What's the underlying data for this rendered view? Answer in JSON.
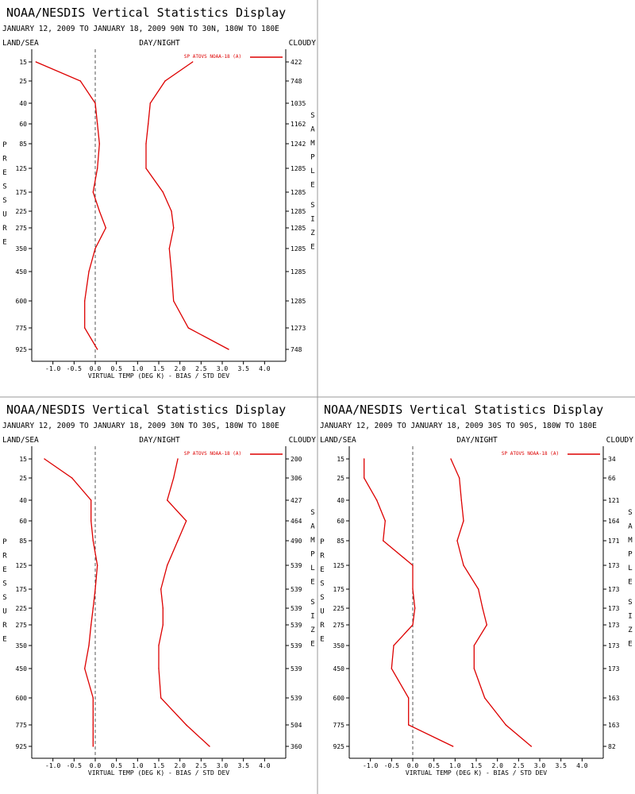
{
  "colors": {
    "line": "#dd0000",
    "axis": "#000000",
    "divider": "#999999",
    "zero_line": "#555555"
  },
  "chart_data": [
    {
      "type": "line",
      "title": "NOAA/NESDIS Vertical Statistics Display",
      "subtitle": "JANUARY 12, 2009 TO JANUARY 18, 2009 90N TO 30N, 180W TO 180E",
      "header_left": "LAND/SEA",
      "header_center": "DAY/NIGHT",
      "header_right": "CLOUDY",
      "xlabel": "VIRTUAL TEMP (DEG K) - BIAS / STD DEV",
      "ylabel": "PRESSURE",
      "right_label": "SAMPLE SIZE",
      "legend": "SP ATOVS NOAA-18 (A)",
      "xlim": [
        -1.5,
        4.5
      ],
      "x_ticks": [
        "-1.0",
        "-0.5",
        "0.0",
        "0.5",
        "1.0",
        "1.5",
        "2.0",
        "2.5",
        "3.0",
        "3.5",
        "4.0"
      ],
      "levels": [
        "15",
        "25",
        "40",
        "60",
        "85",
        "125",
        "175",
        "225",
        "275",
        "350",
        "450",
        "600",
        "775",
        "925"
      ],
      "sample_size": [
        "422",
        "748",
        "1035",
        "1162",
        "1242",
        "1285",
        "1285",
        "1285",
        "1285",
        "1285",
        "1285",
        "1285",
        "1273",
        "748"
      ],
      "series": [
        {
          "values": [
            -1.4,
            -0.35,
            0.0,
            0.05,
            0.1,
            0.05,
            -0.05,
            0.1,
            0.25,
            0.0,
            -0.15,
            -0.25,
            -0.25,
            0.05
          ]
        },
        {
          "values": [
            2.3,
            1.65,
            1.3,
            1.25,
            1.2,
            1.2,
            1.6,
            1.8,
            1.85,
            1.75,
            1.8,
            1.85,
            2.2,
            3.15
          ]
        }
      ]
    },
    {
      "type": "line",
      "title": "NOAA/NESDIS Vertical Statistics Display",
      "subtitle": "JANUARY 12, 2009 TO JANUARY 18, 2009 30N TO 30S, 180W TO 180E",
      "header_left": "LAND/SEA",
      "header_center": "DAY/NIGHT",
      "header_right": "CLOUDY",
      "xlabel": "VIRTUAL TEMP (DEG K) - BIAS / STD DEV",
      "ylabel": "PRESSURE",
      "right_label": "SAMPLE SIZE",
      "legend": "SP ATOVS NOAA-18 (A)",
      "xlim": [
        -1.5,
        4.5
      ],
      "x_ticks": [
        "-1.0",
        "-0.5",
        "0.0",
        "0.5",
        "1.0",
        "1.5",
        "2.0",
        "2.5",
        "3.0",
        "3.5",
        "4.0"
      ],
      "levels": [
        "15",
        "25",
        "40",
        "60",
        "85",
        "125",
        "175",
        "225",
        "275",
        "350",
        "450",
        "600",
        "775",
        "925"
      ],
      "sample_size": [
        "200",
        "306",
        "427",
        "464",
        "490",
        "539",
        "539",
        "539",
        "539",
        "539",
        "539",
        "539",
        "504",
        "360"
      ],
      "series": [
        {
          "values": [
            -1.2,
            -0.55,
            -0.1,
            -0.1,
            -0.05,
            0.05,
            0.0,
            -0.05,
            -0.1,
            -0.15,
            -0.25,
            -0.05,
            -0.05,
            -0.05
          ]
        },
        {
          "values": [
            1.95,
            1.85,
            1.7,
            2.15,
            1.95,
            1.7,
            1.55,
            1.6,
            1.6,
            1.5,
            1.5,
            1.55,
            2.15,
            2.7
          ]
        }
      ]
    },
    {
      "type": "line",
      "title": "NOAA/NESDIS Vertical Statistics Display",
      "subtitle": "JANUARY 12, 2009 TO JANUARY 18, 2009 30S TO 90S, 180W TO 180E",
      "header_left": "LAND/SEA",
      "header_center": "DAY/NIGHT",
      "header_right": "CLOUDY",
      "xlabel": "VIRTUAL TEMP (DEG K) - BIAS / STD DEV",
      "ylabel": "PRESSURE",
      "right_label": "SAMPLE SIZE",
      "legend": "SP ATOVS NOAA-18 (A)",
      "xlim": [
        -1.5,
        4.5
      ],
      "x_ticks": [
        "-1.0",
        "-0.5",
        "0.0",
        "0.5",
        "1.0",
        "1.5",
        "2.0",
        "2.5",
        "3.0",
        "3.5",
        "4.0"
      ],
      "levels": [
        "15",
        "25",
        "40",
        "60",
        "85",
        "125",
        "175",
        "225",
        "275",
        "350",
        "450",
        "600",
        "775",
        "925"
      ],
      "sample_size": [
        "34",
        "66",
        "121",
        "164",
        "171",
        "173",
        "173",
        "173",
        "173",
        "173",
        "173",
        "163",
        "163",
        "82"
      ],
      "series": [
        {
          "values": [
            -1.15,
            -1.15,
            -0.85,
            -0.65,
            -0.7,
            0.0,
            0.0,
            0.05,
            0.0,
            -0.45,
            -0.5,
            -0.1,
            -0.1,
            0.95
          ]
        },
        {
          "values": [
            0.9,
            1.1,
            1.15,
            1.2,
            1.05,
            1.2,
            1.55,
            1.65,
            1.75,
            1.45,
            1.45,
            1.7,
            2.2,
            2.8
          ]
        }
      ]
    }
  ]
}
